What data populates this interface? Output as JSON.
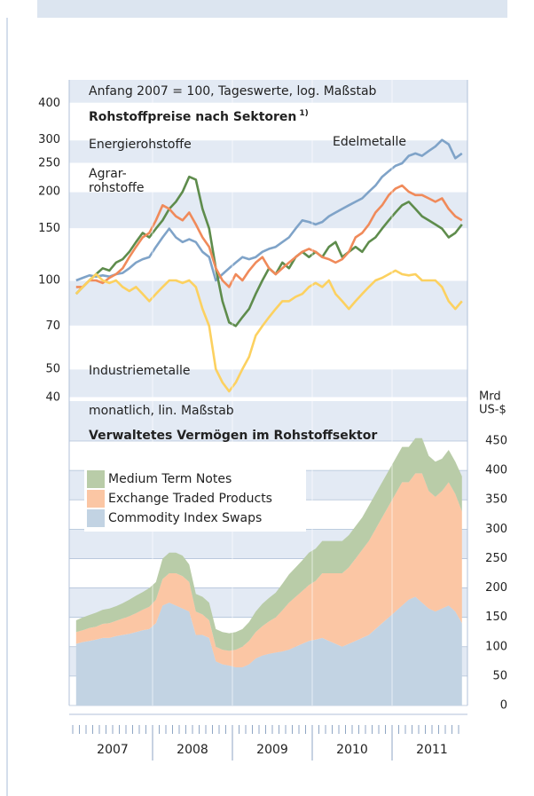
{
  "chart_data": [
    {
      "type": "line",
      "log_scale": true,
      "subtitle": "Anfang 2007 = 100, Tageswerte, log. Maßstab",
      "title": "Rohstoffpreise nach Sektoren",
      "title_note": "1)",
      "ylim": [
        40,
        480
      ],
      "yticks": [
        40,
        50,
        70,
        100,
        150,
        200,
        250,
        300,
        400
      ],
      "x": [
        "2007-01",
        "2007-02",
        "2007-03",
        "2007-04",
        "2007-05",
        "2007-06",
        "2007-07",
        "2007-08",
        "2007-09",
        "2007-10",
        "2007-11",
        "2007-12",
        "2008-01",
        "2008-02",
        "2008-03",
        "2008-04",
        "2008-05",
        "2008-06",
        "2008-07",
        "2008-08",
        "2008-09",
        "2008-10",
        "2008-11",
        "2008-12",
        "2009-01",
        "2009-02",
        "2009-03",
        "2009-04",
        "2009-05",
        "2009-06",
        "2009-07",
        "2009-08",
        "2009-09",
        "2009-10",
        "2009-11",
        "2009-12",
        "2010-01",
        "2010-02",
        "2010-03",
        "2010-04",
        "2010-05",
        "2010-06",
        "2010-07",
        "2010-08",
        "2010-09",
        "2010-10",
        "2010-11",
        "2010-12",
        "2011-01",
        "2011-02",
        "2011-03",
        "2011-04",
        "2011-05",
        "2011-06",
        "2011-07",
        "2011-08",
        "2011-09",
        "2011-10",
        "2011-11"
      ],
      "series": [
        {
          "label_lines": [
            "Edelmetalle"
          ],
          "color": "#7fa3c8",
          "values": [
            100,
            102,
            104,
            103,
            104,
            103,
            105,
            106,
            110,
            115,
            118,
            120,
            130,
            140,
            150,
            140,
            135,
            138,
            135,
            125,
            120,
            100,
            105,
            110,
            115,
            120,
            118,
            120,
            125,
            128,
            130,
            135,
            140,
            150,
            160,
            158,
            155,
            158,
            165,
            170,
            175,
            180,
            185,
            190,
            200,
            210,
            225,
            235,
            245,
            250,
            265,
            270,
            265,
            275,
            285,
            300,
            290,
            260,
            270
          ]
        },
        {
          "label_lines": [
            "Energierohstoffe"
          ],
          "color": "#5e8c4c",
          "values": [
            90,
            95,
            100,
            105,
            110,
            108,
            115,
            118,
            125,
            135,
            145,
            140,
            150,
            160,
            175,
            185,
            200,
            225,
            220,
            175,
            150,
            110,
            85,
            72,
            70,
            75,
            80,
            90,
            100,
            110,
            105,
            115,
            110,
            120,
            125,
            120,
            125,
            120,
            130,
            135,
            120,
            125,
            130,
            125,
            135,
            140,
            150,
            160,
            170,
            180,
            185,
            175,
            165,
            160,
            155,
            150,
            140,
            145,
            155
          ]
        },
        {
          "label_lines": [
            "Agrar-",
            "rohstoffe"
          ],
          "color": "#f08a5a",
          "values": [
            95,
            95,
            100,
            100,
            98,
            102,
            105,
            110,
            120,
            130,
            140,
            145,
            160,
            180,
            175,
            165,
            160,
            170,
            155,
            140,
            130,
            110,
            100,
            95,
            105,
            100,
            108,
            115,
            120,
            110,
            105,
            110,
            115,
            120,
            125,
            128,
            125,
            120,
            118,
            115,
            118,
            125,
            140,
            145,
            155,
            170,
            180,
            195,
            205,
            210,
            200,
            195,
            195,
            190,
            185,
            190,
            175,
            165,
            160
          ]
        },
        {
          "label_lines": [
            "Industriemetalle"
          ],
          "color": "#fcd160",
          "values": [
            90,
            95,
            100,
            105,
            100,
            98,
            100,
            95,
            92,
            95,
            90,
            85,
            90,
            95,
            100,
            100,
            98,
            100,
            95,
            80,
            70,
            50,
            45,
            42,
            45,
            50,
            55,
            65,
            70,
            75,
            80,
            85,
            85,
            88,
            90,
            95,
            98,
            95,
            100,
            90,
            85,
            80,
            85,
            90,
            95,
            100,
            102,
            105,
            108,
            105,
            104,
            105,
            100,
            100,
            100,
            95,
            85,
            80,
            85
          ]
        }
      ]
    },
    {
      "type": "stacked_area",
      "subtitle": "monatlich, lin. Maßstab",
      "title": "Verwaltetes Vermögen im Rohstoffsektor",
      "y_label": [
        "Mrd",
        "US-$"
      ],
      "ylim": [
        0,
        518
      ],
      "yticks": [
        0,
        50,
        100,
        150,
        200,
        250,
        300,
        350,
        400,
        450
      ],
      "xtick_labels": [
        "2007",
        "2008",
        "2009",
        "2010",
        "2011"
      ],
      "x": [
        "2007-01",
        "2007-02",
        "2007-03",
        "2007-04",
        "2007-05",
        "2007-06",
        "2007-07",
        "2007-08",
        "2007-09",
        "2007-10",
        "2007-11",
        "2007-12",
        "2008-01",
        "2008-02",
        "2008-03",
        "2008-04",
        "2008-05",
        "2008-06",
        "2008-07",
        "2008-08",
        "2008-09",
        "2008-10",
        "2008-11",
        "2008-12",
        "2009-01",
        "2009-02",
        "2009-03",
        "2009-04",
        "2009-05",
        "2009-06",
        "2009-07",
        "2009-08",
        "2009-09",
        "2009-10",
        "2009-11",
        "2009-12",
        "2010-01",
        "2010-02",
        "2010-03",
        "2010-04",
        "2010-05",
        "2010-06",
        "2010-07",
        "2010-08",
        "2010-09",
        "2010-10",
        "2010-11",
        "2010-12",
        "2011-01",
        "2011-02",
        "2011-03",
        "2011-04",
        "2011-05",
        "2011-06",
        "2011-07",
        "2011-08",
        "2011-09",
        "2011-10",
        "2011-11"
      ],
      "series": [
        {
          "name": "Commodity Index Swaps",
          "color": "#c2d3e3",
          "values": [
            105,
            108,
            110,
            112,
            115,
            115,
            118,
            120,
            122,
            125,
            128,
            130,
            140,
            170,
            175,
            170,
            165,
            160,
            120,
            120,
            115,
            75,
            70,
            68,
            65,
            65,
            70,
            80,
            85,
            88,
            90,
            92,
            95,
            100,
            105,
            110,
            112,
            115,
            110,
            105,
            100,
            105,
            110,
            115,
            120,
            130,
            140,
            150,
            160,
            170,
            180,
            185,
            175,
            165,
            160,
            165,
            170,
            160,
            140
          ]
        },
        {
          "name": "Exchange Traded Products",
          "color": "#fbc6a4",
          "values": [
            20,
            20,
            22,
            22,
            24,
            25,
            26,
            28,
            30,
            32,
            35,
            38,
            40,
            45,
            50,
            55,
            55,
            50,
            40,
            35,
            30,
            25,
            25,
            25,
            30,
            35,
            40,
            45,
            50,
            55,
            60,
            70,
            80,
            85,
            90,
            95,
            100,
            110,
            115,
            120,
            125,
            130,
            140,
            150,
            160,
            170,
            180,
            190,
            200,
            210,
            200,
            210,
            220,
            200,
            195,
            200,
            210,
            200,
            190
          ]
        },
        {
          "name": "Medium Term Notes",
          "color": "#b9cca8",
          "values": [
            20,
            22,
            22,
            24,
            24,
            25,
            25,
            26,
            28,
            30,
            30,
            32,
            30,
            35,
            35,
            35,
            35,
            30,
            30,
            30,
            30,
            30,
            30,
            30,
            30,
            30,
            32,
            35,
            38,
            40,
            42,
            45,
            48,
            50,
            52,
            55,
            55,
            55,
            55,
            55,
            55,
            55,
            55,
            55,
            60,
            60,
            60,
            60,
            60,
            60,
            60,
            60,
            60,
            60,
            60,
            55,
            55,
            55,
            60
          ]
        }
      ]
    }
  ]
}
